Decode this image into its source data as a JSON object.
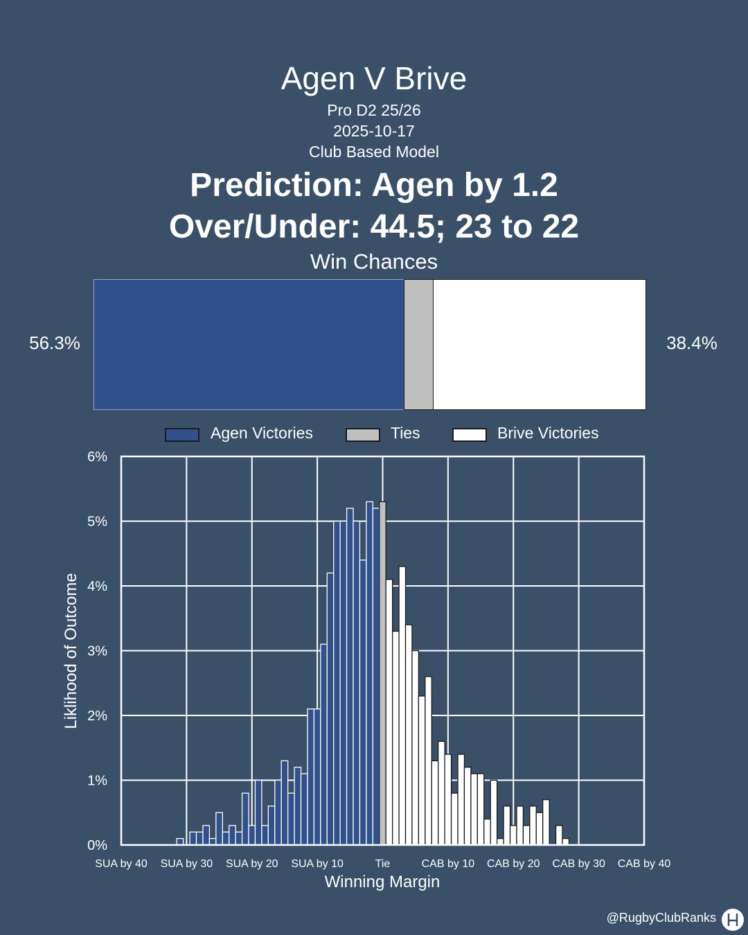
{
  "header": {
    "title": "Agen V Brive",
    "league": "Pro D2 25/26",
    "date": "2025-10-17",
    "model": "Club Based Model",
    "prediction": "Prediction: Agen by 1.2",
    "over_under": "Over/Under: 44.5; 23 to 22"
  },
  "win_chances": {
    "title": "Win Chances",
    "home_pct_label": "56.3%",
    "away_pct_label": "38.4%",
    "home_pct": 56.3,
    "tie_pct": 5.3,
    "away_pct": 38.4
  },
  "legend": {
    "home": "Agen Victories",
    "tie": "Ties",
    "away": "Brive Victories"
  },
  "colors": {
    "background": "#3a5068",
    "home": "#31518c",
    "tie": "#c0c0c0",
    "away": "#ffffff"
  },
  "watermark": "@RugbyClubRanks",
  "chart_data": {
    "type": "bar",
    "xlabel": "Winning Margin",
    "ylabel": "Liklihood of Outcome",
    "xlim": [
      -40,
      40
    ],
    "ylim": [
      0,
      6
    ],
    "x_ticks": [
      {
        "value": -40,
        "label": "SUA by 40"
      },
      {
        "value": -30,
        "label": "SUA by 30"
      },
      {
        "value": -20,
        "label": "SUA by 20"
      },
      {
        "value": -10,
        "label": "SUA by 10"
      },
      {
        "value": 0,
        "label": "Tie"
      },
      {
        "value": 10,
        "label": "CAB by 10"
      },
      {
        "value": 20,
        "label": "CAB by 20"
      },
      {
        "value": 30,
        "label": "CAB by 30"
      },
      {
        "value": 40,
        "label": "CAB by 40"
      }
    ],
    "y_ticks": [
      {
        "value": 0,
        "label": "0%"
      },
      {
        "value": 1,
        "label": "1%"
      },
      {
        "value": 2,
        "label": "2%"
      },
      {
        "value": 3,
        "label": "3%"
      },
      {
        "value": 4,
        "label": "4%"
      },
      {
        "value": 5,
        "label": "5%"
      },
      {
        "value": 6,
        "label": "6%"
      }
    ],
    "grid": true,
    "series": [
      {
        "name": "Agen Victories",
        "x": [
          -31,
          -30,
          -29,
          -28,
          -27,
          -26,
          -25,
          -24,
          -23,
          -22,
          -21,
          -20,
          -19,
          -18,
          -17,
          -16,
          -15,
          -14,
          -13,
          -12,
          -11,
          -10,
          -9,
          -8,
          -7,
          -6,
          -5,
          -4,
          -3,
          -2,
          -1
        ],
        "values": [
          0.1,
          0,
          0.2,
          0.2,
          0.3,
          0.1,
          0.5,
          0.2,
          0.3,
          0.2,
          0.8,
          0.3,
          1.0,
          0.3,
          0.6,
          1.0,
          1.3,
          0.8,
          1.2,
          1.1,
          2.1,
          2.1,
          3.1,
          4.2,
          5.0,
          5.0,
          5.2,
          5.0,
          4.4,
          5.3,
          5.2
        ]
      },
      {
        "name": "Ties",
        "x": [
          0
        ],
        "values": [
          5.3
        ]
      },
      {
        "name": "Brive Victories",
        "x": [
          1,
          2,
          3,
          4,
          5,
          6,
          7,
          8,
          9,
          10,
          11,
          12,
          13,
          14,
          15,
          16,
          17,
          18,
          19,
          20,
          21,
          22,
          23,
          24,
          25,
          26,
          27,
          28
        ],
        "values": [
          4.1,
          3.3,
          4.3,
          3.4,
          3.0,
          2.3,
          2.6,
          1.3,
          1.6,
          1.4,
          0.8,
          1.4,
          1.2,
          1.1,
          1.1,
          0.4,
          1.0,
          0.1,
          0.6,
          0.3,
          0.6,
          0.3,
          0.6,
          0.5,
          0.7,
          0,
          0.3,
          0.1
        ]
      }
    ]
  }
}
